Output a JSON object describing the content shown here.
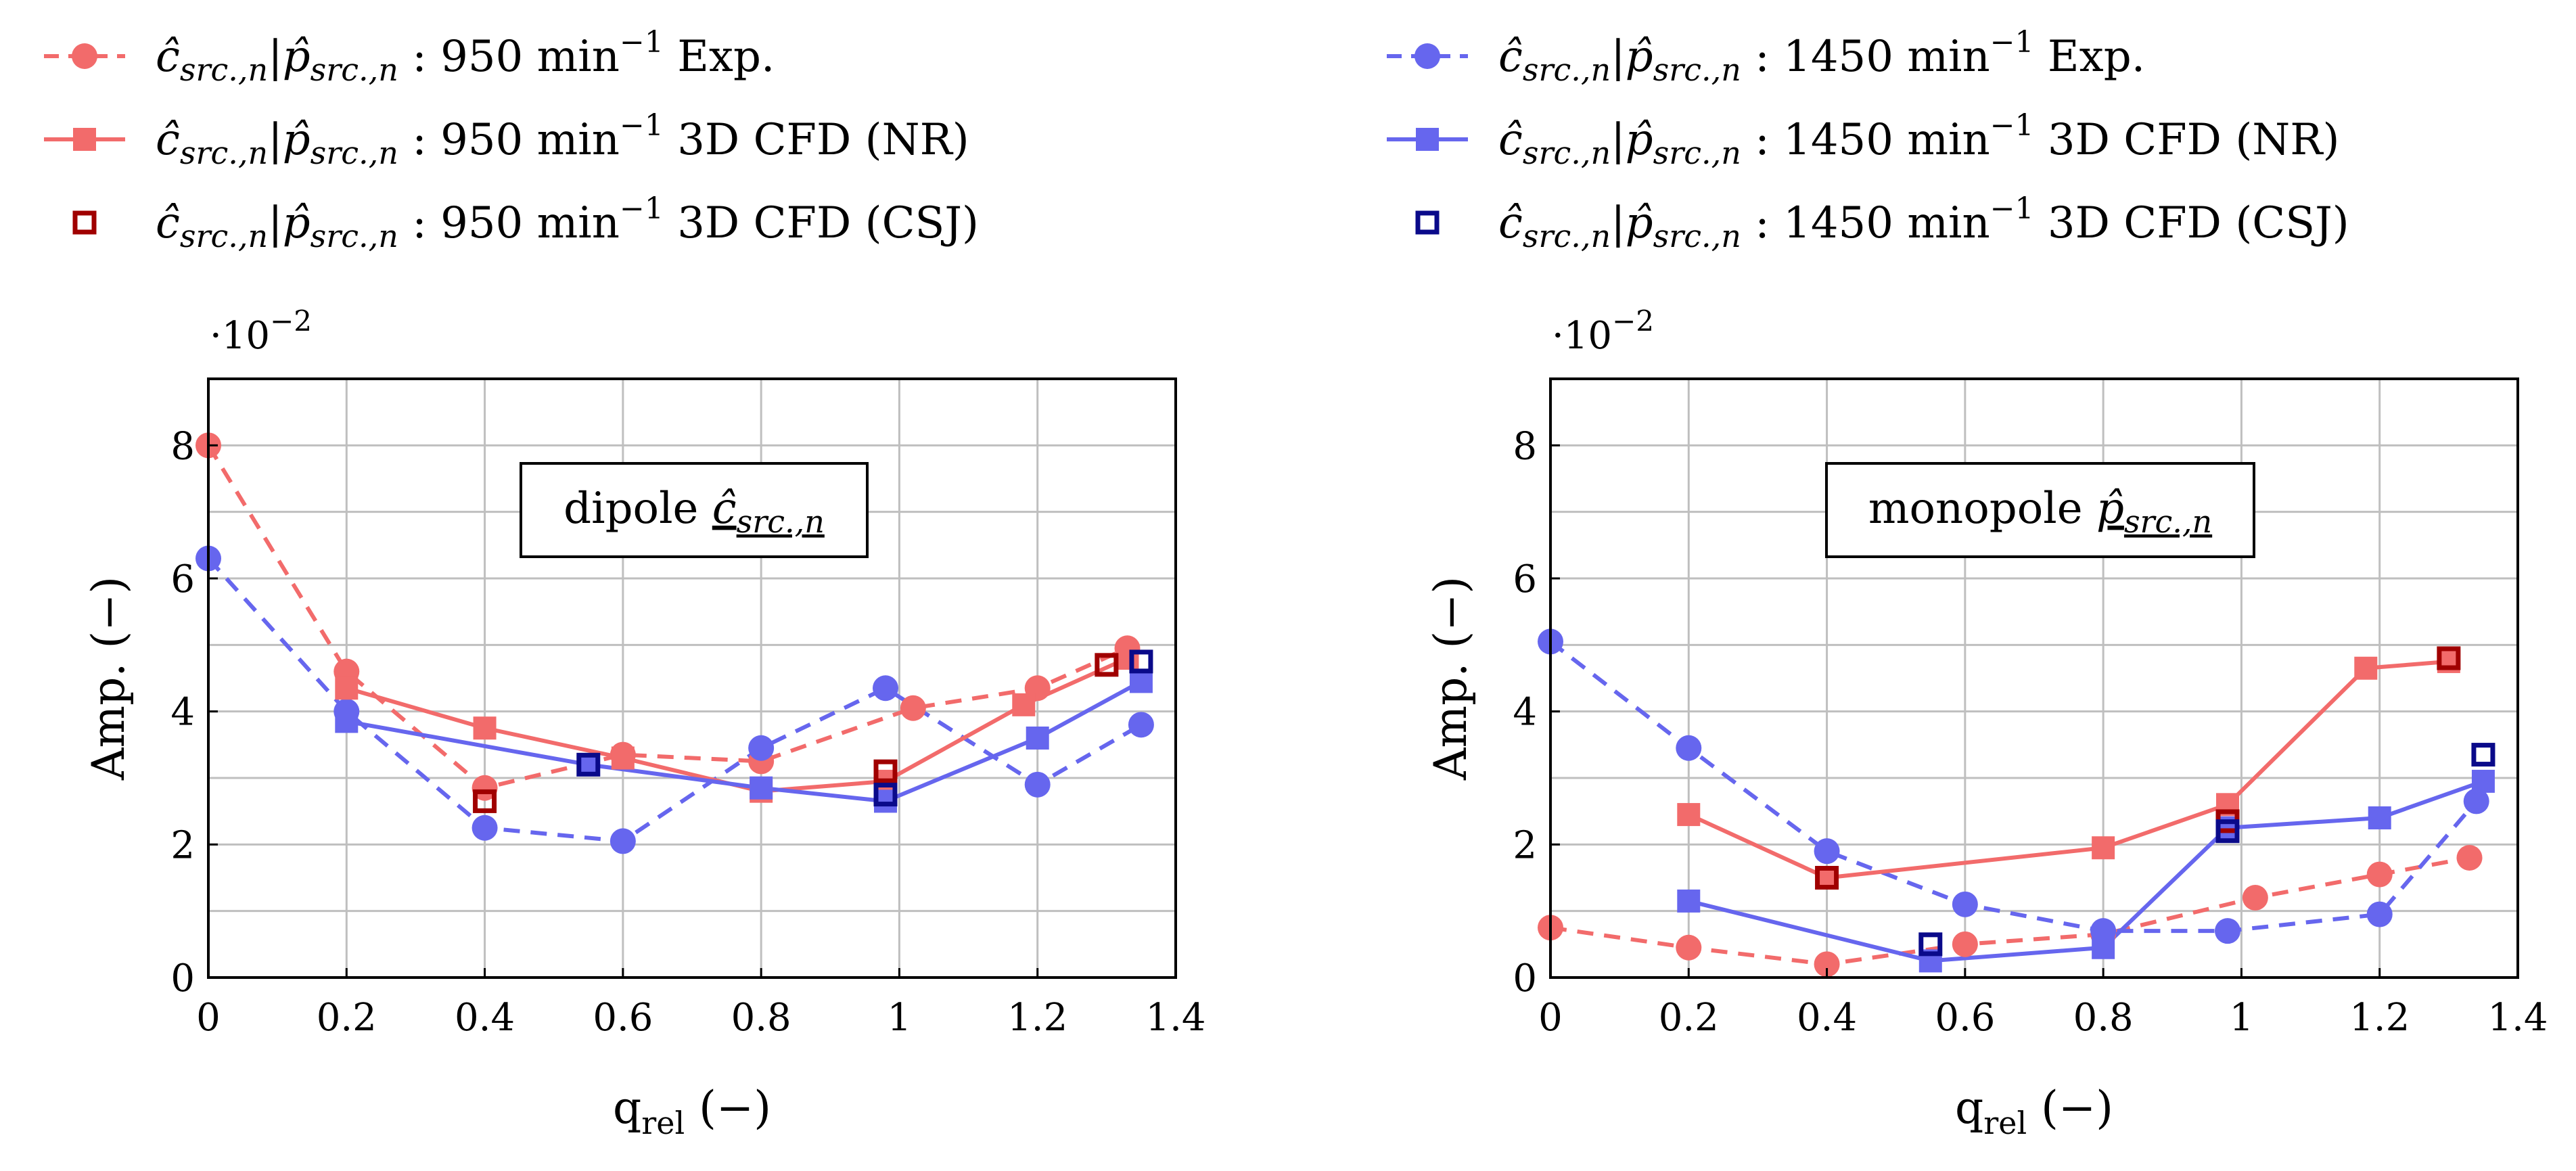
{
  "colors": {
    "red": "#f26b6b",
    "blue": "#6666ee",
    "dark_red": "#a00000",
    "dark_blue": "#0a0a8a",
    "grid": "#bfbfbf"
  },
  "legend": {
    "left": [
      {
        "prefix": "ĉ",
        "sub": "src.,n",
        "sep": "|",
        "prefix2": "p̂",
        "sub2": "src.,n",
        "speed": ": 950 min",
        "exp": "−1",
        "suffix": "Exp.",
        "style": "exp",
        "color_key": "red"
      },
      {
        "prefix": "ĉ",
        "sub": "src.,n",
        "sep": "|",
        "prefix2": "p̂",
        "sub2": "src.,n",
        "speed": ": 950 min",
        "exp": "−1",
        "suffix": "3D CFD (NR)",
        "style": "nr",
        "color_key": "red"
      },
      {
        "prefix": "ĉ",
        "sub": "src.,n",
        "sep": "|",
        "prefix2": "p̂",
        "sub2": "src.,n",
        "speed": ": 950 min",
        "exp": "−1",
        "suffix": "3D CFD (CSJ)",
        "style": "csj",
        "color_key": "dark_red"
      }
    ],
    "right": [
      {
        "prefix": "ĉ",
        "sub": "src.,n",
        "sep": "|",
        "prefix2": "p̂",
        "sub2": "src.,n",
        "speed": ": 1450 min",
        "exp": "−1",
        "suffix": "Exp.",
        "style": "exp",
        "color_key": "blue"
      },
      {
        "prefix": "ĉ",
        "sub": "src.,n",
        "sep": "|",
        "prefix2": "p̂",
        "sub2": "src.,n",
        "speed": ": 1450 min",
        "exp": "−1",
        "suffix": "3D CFD (NR)",
        "style": "nr",
        "color_key": "blue"
      },
      {
        "prefix": "ĉ",
        "sub": "src.,n",
        "sep": "|",
        "prefix2": "p̂",
        "sub2": "src.,n",
        "speed": ": 1450 min",
        "exp": "−1",
        "suffix": "3D CFD (CSJ)",
        "style": "csj",
        "color_key": "dark_blue"
      }
    ]
  },
  "chart_data": [
    {
      "type": "line",
      "annotation": {
        "main": "dipole ",
        "sym": "ĉ",
        "sub": "src.,n"
      },
      "xlabel": "q",
      "xlabel_sub": "rel",
      "xlabel_unit": " (−)",
      "ylabel": "Amp. (−)",
      "yscale_label": "·10",
      "yscale_exp": "−2",
      "xlim": [
        0,
        1.4
      ],
      "ylim": [
        0,
        9
      ],
      "xticks": [
        0,
        0.2,
        0.4,
        0.6,
        0.8,
        1,
        1.2,
        1.4
      ],
      "xtick_labels": [
        "0",
        "0.2",
        "0.4",
        "0.6",
        "0.8",
        "1",
        "1.2",
        "1.4"
      ],
      "yticks": [
        0,
        2,
        4,
        6,
        8
      ],
      "ytick_labels": [
        "0",
        "2",
        "4",
        "6",
        "8"
      ],
      "grid": true,
      "series": [
        {
          "name": "950 min−1 Exp.",
          "style": "exp",
          "color_key": "red",
          "x": [
            0,
            0.2,
            0.4,
            0.6,
            0.8,
            1.02,
            1.2,
            1.33
          ],
          "y": [
            8.0,
            4.6,
            2.85,
            3.35,
            3.25,
            4.05,
            4.35,
            4.95
          ]
        },
        {
          "name": "1450 min−1 Exp.",
          "style": "exp",
          "color_key": "blue",
          "x": [
            0,
            0.2,
            0.4,
            0.6,
            0.8,
            0.98,
            1.2,
            1.35
          ],
          "y": [
            6.3,
            4.0,
            2.25,
            2.05,
            3.45,
            4.35,
            2.9,
            3.8
          ]
        },
        {
          "name": "950 min−1 3D CFD (NR)",
          "style": "nr",
          "color_key": "red",
          "x": [
            0.2,
            0.4,
            0.6,
            0.8,
            0.98,
            1.18,
            1.33
          ],
          "y": [
            4.35,
            3.75,
            3.3,
            2.8,
            2.95,
            4.1,
            4.8
          ]
        },
        {
          "name": "1450 min−1 3D CFD (NR)",
          "style": "nr",
          "color_key": "blue",
          "x": [
            0.2,
            0.55,
            0.8,
            0.98,
            1.2,
            1.35
          ],
          "y": [
            3.85,
            3.2,
            2.85,
            2.65,
            3.6,
            4.45
          ]
        },
        {
          "name": "950 min−1 3D CFD (CSJ)",
          "style": "csj",
          "color_key": "dark_red",
          "x": [
            0.4,
            0.98,
            1.3
          ],
          "y": [
            2.65,
            3.1,
            4.7
          ]
        },
        {
          "name": "1450 min−1 3D CFD (CSJ)",
          "style": "csj",
          "color_key": "dark_blue",
          "x": [
            0.55,
            0.98,
            1.35
          ],
          "y": [
            3.2,
            2.75,
            4.75
          ]
        }
      ]
    },
    {
      "type": "line",
      "annotation": {
        "main": "monopole ",
        "sym": "p̂",
        "sub": "src.,n"
      },
      "xlabel": "q",
      "xlabel_sub": "rel",
      "xlabel_unit": " (−)",
      "ylabel": "Amp. (−)",
      "yscale_label": "·10",
      "yscale_exp": "−2",
      "xlim": [
        0,
        1.4
      ],
      "ylim": [
        0,
        9
      ],
      "xticks": [
        0,
        0.2,
        0.4,
        0.6,
        0.8,
        1,
        1.2,
        1.4
      ],
      "xtick_labels": [
        "0",
        "0.2",
        "0.4",
        "0.6",
        "0.8",
        "1",
        "1.2",
        "1.4"
      ],
      "yticks": [
        0,
        2,
        4,
        6,
        8
      ],
      "ytick_labels": [
        "0",
        "2",
        "4",
        "6",
        "8"
      ],
      "grid": true,
      "series": [
        {
          "name": "950 min−1 Exp.",
          "style": "exp",
          "color_key": "red",
          "x": [
            0,
            0.2,
            0.4,
            0.6,
            0.8,
            1.02,
            1.2,
            1.33
          ],
          "y": [
            0.75,
            0.45,
            0.2,
            0.5,
            0.65,
            1.2,
            1.55,
            1.8
          ]
        },
        {
          "name": "1450 min−1 Exp.",
          "style": "exp",
          "color_key": "blue",
          "x": [
            0,
            0.2,
            0.4,
            0.6,
            0.8,
            0.98,
            1.2,
            1.34
          ],
          "y": [
            5.05,
            3.45,
            1.9,
            1.1,
            0.7,
            0.7,
            0.95,
            2.65
          ]
        },
        {
          "name": "950 min−1 3D CFD (NR)",
          "style": "nr",
          "color_key": "red",
          "x": [
            0.2,
            0.4,
            0.8,
            0.98,
            1.18,
            1.3
          ],
          "y": [
            2.45,
            1.5,
            1.95,
            2.6,
            4.65,
            4.75
          ]
        },
        {
          "name": "1450 min−1 3D CFD (NR)",
          "style": "nr",
          "color_key": "blue",
          "x": [
            0.2,
            0.55,
            0.8,
            0.98,
            1.2,
            1.35
          ],
          "y": [
            1.15,
            0.25,
            0.45,
            2.25,
            2.4,
            2.95
          ]
        },
        {
          "name": "950 min−1 3D CFD (CSJ)",
          "style": "csj",
          "color_key": "dark_red",
          "x": [
            0.4,
            0.98,
            1.3
          ],
          "y": [
            1.5,
            2.35,
            4.8
          ]
        },
        {
          "name": "1450 min−1 3D CFD (CSJ)",
          "style": "csj",
          "color_key": "dark_blue",
          "x": [
            0.55,
            0.98,
            1.35
          ],
          "y": [
            0.5,
            2.2,
            3.35
          ]
        }
      ]
    }
  ]
}
